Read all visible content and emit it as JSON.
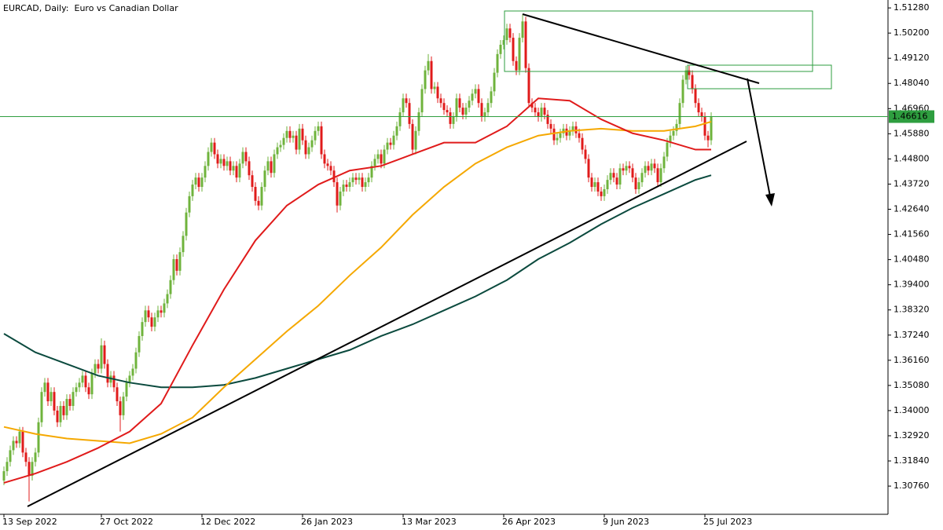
{
  "chart_data": {
    "type": "candlestick",
    "title": "EURCAD, Daily:  Euro vs Canadian Dollar",
    "last_price": {
      "value": 1.46616,
      "label": "1.46616"
    },
    "up_color": "#6fb33c",
    "down_color": "#e01b1b",
    "last_color": "#2e9e3f",
    "xlim": [
      -1.25,
      281.25
    ],
    "ylim": [
      1.2955,
      1.5162
    ],
    "xticks": [
      {
        "value": 0,
        "label": "13 Sep 2022"
      },
      {
        "value": 31,
        "label": "27 Oct 2022"
      },
      {
        "value": 63,
        "label": "12 Dec 2022"
      },
      {
        "value": 95,
        "label": "26 Jan 2023"
      },
      {
        "value": 127,
        "label": "13 Mar 2023"
      },
      {
        "value": 159,
        "label": "26 Apr 2023"
      },
      {
        "value": 191,
        "label": "9 Jun 2023"
      },
      {
        "value": 223,
        "label": "25 Jul 2023"
      }
    ],
    "yticks": [
      {
        "value": 1.5128,
        "label": "1.51280"
      },
      {
        "value": 1.502,
        "label": "1.50200"
      },
      {
        "value": 1.4912,
        "label": "1.49120"
      },
      {
        "value": 1.4804,
        "label": "1.48040"
      },
      {
        "value": 1.4696,
        "label": "1.46960"
      },
      {
        "value": 1.4588,
        "label": "1.45880"
      },
      {
        "value": 1.448,
        "label": "1.44800"
      },
      {
        "value": 1.4372,
        "label": "1.43720"
      },
      {
        "value": 1.4264,
        "label": "1.42640"
      },
      {
        "value": 1.4156,
        "label": "1.41560"
      },
      {
        "value": 1.4048,
        "label": "1.40480"
      },
      {
        "value": 1.394,
        "label": "1.39400"
      },
      {
        "value": 1.3832,
        "label": "1.38320"
      },
      {
        "value": 1.3724,
        "label": "1.37240"
      },
      {
        "value": 1.3616,
        "label": "1.36160"
      },
      {
        "value": 1.3508,
        "label": "1.35080"
      },
      {
        "value": 1.34,
        "label": "1.34000"
      },
      {
        "value": 1.3292,
        "label": "1.32920"
      },
      {
        "value": 1.3184,
        "label": "1.31840"
      },
      {
        "value": 1.3076,
        "label": "1.30760"
      }
    ],
    "open": [
      1.31,
      1.314,
      1.318,
      1.323,
      1.327,
      1.326,
      1.331,
      1.322,
      1.318,
      1.312,
      1.318,
      1.322,
      1.335,
      1.348,
      1.352,
      1.344,
      1.348,
      1.34,
      1.335,
      1.342,
      1.338,
      1.345,
      1.342,
      1.348,
      1.35,
      1.352,
      1.355,
      1.35,
      1.347,
      1.356,
      1.36,
      1.358,
      1.368,
      1.36,
      1.352,
      1.355,
      1.35,
      1.344,
      1.338,
      1.346,
      1.352,
      1.355,
      1.358,
      1.365,
      1.372,
      1.378,
      1.383,
      1.38,
      1.376,
      1.38,
      1.383,
      1.382,
      1.386,
      1.39,
      1.396,
      1.405,
      1.4,
      1.408,
      1.415,
      1.425,
      1.432,
      1.437,
      1.44,
      1.436,
      1.44,
      1.445,
      1.451,
      1.455,
      1.45,
      1.446,
      1.448,
      1.445,
      1.447,
      1.443,
      1.445,
      1.44,
      1.446,
      1.451,
      1.447,
      1.441,
      1.436,
      1.43,
      1.428,
      1.436,
      1.443,
      1.447,
      1.442,
      1.45,
      1.453,
      1.454,
      1.457,
      1.46,
      1.457,
      1.458,
      1.452,
      1.461,
      1.456,
      1.45,
      1.453,
      1.456,
      1.46,
      1.462,
      1.45,
      1.446,
      1.445,
      1.443,
      1.438,
      1.428,
      1.434,
      1.437,
      1.436,
      1.438,
      1.44,
      1.439,
      1.44,
      1.436,
      1.438,
      1.44,
      1.445,
      1.448,
      1.45,
      1.446,
      1.452,
      1.455,
      1.454,
      1.458,
      1.462,
      1.468,
      1.474,
      1.472,
      1.463,
      1.452,
      1.46,
      1.468,
      1.478,
      1.486,
      1.49,
      1.478,
      1.479,
      1.474,
      1.472,
      1.469,
      1.468,
      1.463,
      1.466,
      1.474,
      1.47,
      1.467,
      1.47,
      1.473,
      1.476,
      1.478,
      1.472,
      1.466,
      1.468,
      1.472,
      1.477,
      1.485,
      1.493,
      1.497,
      1.499,
      1.504,
      1.5,
      1.49,
      1.486,
      1.5,
      1.507,
      1.487,
      1.472,
      1.47,
      1.468,
      1.466,
      1.47,
      1.467,
      1.463,
      1.461,
      1.456,
      1.457,
      1.459,
      1.461,
      1.458,
      1.46,
      1.462,
      1.459,
      1.457,
      1.452,
      1.448,
      1.44,
      1.436,
      1.438,
      1.434,
      1.432,
      1.435,
      1.439,
      1.442,
      1.44,
      1.437,
      1.444,
      1.443,
      1.445,
      1.444,
      1.44,
      1.435,
      1.438,
      1.442,
      1.445,
      1.443,
      1.446,
      1.444,
      1.438,
      1.444,
      1.449,
      1.455,
      1.458,
      1.46,
      1.463,
      1.472,
      1.482,
      1.486,
      1.484,
      1.478,
      1.472,
      1.468,
      1.466,
      1.458,
      1.456
    ],
    "high": [
      1.316,
      1.32,
      1.325,
      1.329,
      1.329,
      1.333,
      1.333,
      1.324,
      1.32,
      1.32,
      1.324,
      1.337,
      1.35,
      1.354,
      1.354,
      1.35,
      1.35,
      1.342,
      1.344,
      1.344,
      1.347,
      1.347,
      1.35,
      1.352,
      1.354,
      1.357,
      1.357,
      1.352,
      1.358,
      1.362,
      1.362,
      1.371,
      1.37,
      1.362,
      1.357,
      1.357,
      1.352,
      1.346,
      1.348,
      1.354,
      1.357,
      1.36,
      1.367,
      1.374,
      1.38,
      1.385,
      1.385,
      1.382,
      1.382,
      1.385,
      1.385,
      1.388,
      1.392,
      1.398,
      1.407,
      1.407,
      1.41,
      1.417,
      1.427,
      1.434,
      1.439,
      1.442,
      1.442,
      1.442,
      1.447,
      1.453,
      1.457,
      1.457,
      1.452,
      1.45,
      1.45,
      1.449,
      1.449,
      1.447,
      1.447,
      1.448,
      1.453,
      1.453,
      1.449,
      1.443,
      1.438,
      1.432,
      1.438,
      1.445,
      1.449,
      1.449,
      1.452,
      1.455,
      1.456,
      1.459,
      1.462,
      1.462,
      1.46,
      1.46,
      1.463,
      1.463,
      1.458,
      1.455,
      1.458,
      1.462,
      1.464,
      1.464,
      1.452,
      1.448,
      1.447,
      1.445,
      1.44,
      1.436,
      1.439,
      1.439,
      1.44,
      1.442,
      1.442,
      1.442,
      1.442,
      1.44,
      1.442,
      1.447,
      1.45,
      1.452,
      1.452,
      1.454,
      1.457,
      1.457,
      1.46,
      1.464,
      1.47,
      1.476,
      1.476,
      1.474,
      1.465,
      1.462,
      1.47,
      1.48,
      1.488,
      1.493,
      1.492,
      1.481,
      1.481,
      1.476,
      1.474,
      1.471,
      1.47,
      1.468,
      1.476,
      1.476,
      1.472,
      1.472,
      1.475,
      1.478,
      1.48,
      1.48,
      1.474,
      1.47,
      1.474,
      1.479,
      1.487,
      1.495,
      1.499,
      1.501,
      1.506,
      1.506,
      1.502,
      1.492,
      1.502,
      1.51,
      1.509,
      1.489,
      1.474,
      1.472,
      1.47,
      1.472,
      1.472,
      1.469,
      1.465,
      1.463,
      1.459,
      1.461,
      1.463,
      1.463,
      1.462,
      1.464,
      1.464,
      1.461,
      1.459,
      1.454,
      1.45,
      1.442,
      1.44,
      1.44,
      1.436,
      1.437,
      1.441,
      1.444,
      1.444,
      1.442,
      1.446,
      1.446,
      1.447,
      1.447,
      1.446,
      1.442,
      1.44,
      1.444,
      1.447,
      1.447,
      1.448,
      1.448,
      1.446,
      1.446,
      1.451,
      1.457,
      1.46,
      1.462,
      1.465,
      1.474,
      1.484,
      1.488,
      1.488,
      1.486,
      1.48,
      1.474,
      1.47,
      1.468,
      1.46,
      1.468
    ],
    "low": [
      1.308,
      1.312,
      1.316,
      1.321,
      1.324,
      1.324,
      1.32,
      1.316,
      1.301,
      1.31,
      1.316,
      1.32,
      1.333,
      1.346,
      1.342,
      1.342,
      1.338,
      1.333,
      1.333,
      1.336,
      1.336,
      1.34,
      1.34,
      1.346,
      1.348,
      1.35,
      1.348,
      1.345,
      1.345,
      1.354,
      1.356,
      1.356,
      1.358,
      1.35,
      1.35,
      1.348,
      1.342,
      1.331,
      1.336,
      1.344,
      1.35,
      1.353,
      1.356,
      1.363,
      1.37,
      1.376,
      1.378,
      1.374,
      1.374,
      1.378,
      1.38,
      1.38,
      1.384,
      1.388,
      1.394,
      1.398,
      1.398,
      1.406,
      1.413,
      1.423,
      1.43,
      1.435,
      1.434,
      1.434,
      1.438,
      1.443,
      1.449,
      1.448,
      1.444,
      1.444,
      1.443,
      1.443,
      1.441,
      1.441,
      1.438,
      1.438,
      1.444,
      1.445,
      1.439,
      1.434,
      1.428,
      1.426,
      1.426,
      1.434,
      1.441,
      1.44,
      1.44,
      1.448,
      1.451,
      1.452,
      1.455,
      1.455,
      1.455,
      1.45,
      1.45,
      1.454,
      1.448,
      1.448,
      1.451,
      1.454,
      1.458,
      1.448,
      1.444,
      1.443,
      1.441,
      1.436,
      1.425,
      1.426,
      1.432,
      1.434,
      1.434,
      1.436,
      1.437,
      1.437,
      1.434,
      1.434,
      1.436,
      1.438,
      1.443,
      1.446,
      1.444,
      1.444,
      1.45,
      1.452,
      1.452,
      1.456,
      1.46,
      1.466,
      1.47,
      1.461,
      1.45,
      1.45,
      1.458,
      1.466,
      1.476,
      1.484,
      1.476,
      1.476,
      1.472,
      1.47,
      1.467,
      1.466,
      1.461,
      1.461,
      1.464,
      1.468,
      1.465,
      1.465,
      1.468,
      1.471,
      1.474,
      1.47,
      1.464,
      1.464,
      1.466,
      1.47,
      1.475,
      1.483,
      1.491,
      1.495,
      1.497,
      1.498,
      1.488,
      1.484,
      1.484,
      1.498,
      1.485,
      1.47,
      1.468,
      1.466,
      1.464,
      1.464,
      1.465,
      1.461,
      1.459,
      1.454,
      1.454,
      1.455,
      1.457,
      1.456,
      1.456,
      1.458,
      1.457,
      1.455,
      1.45,
      1.446,
      1.438,
      1.434,
      1.434,
      1.432,
      1.43,
      1.43,
      1.433,
      1.437,
      1.438,
      1.435,
      1.435,
      1.441,
      1.441,
      1.442,
      1.438,
      1.433,
      1.433,
      1.436,
      1.44,
      1.441,
      1.441,
      1.442,
      1.436,
      1.436,
      1.442,
      1.447,
      1.453,
      1.456,
      1.458,
      1.461,
      1.47,
      1.48,
      1.482,
      1.476,
      1.47,
      1.466,
      1.464,
      1.456,
      1.453,
      1.454
    ],
    "close": [
      1.314,
      1.318,
      1.323,
      1.327,
      1.326,
      1.331,
      1.322,
      1.318,
      1.312,
      1.318,
      1.322,
      1.335,
      1.348,
      1.352,
      1.344,
      1.348,
      1.34,
      1.335,
      1.342,
      1.338,
      1.345,
      1.342,
      1.348,
      1.35,
      1.352,
      1.355,
      1.35,
      1.347,
      1.356,
      1.36,
      1.358,
      1.368,
      1.36,
      1.352,
      1.355,
      1.35,
      1.344,
      1.338,
      1.346,
      1.352,
      1.355,
      1.358,
      1.365,
      1.372,
      1.378,
      1.383,
      1.38,
      1.376,
      1.38,
      1.383,
      1.382,
      1.386,
      1.39,
      1.396,
      1.405,
      1.4,
      1.408,
      1.415,
      1.425,
      1.432,
      1.437,
      1.44,
      1.436,
      1.44,
      1.445,
      1.451,
      1.455,
      1.45,
      1.446,
      1.448,
      1.445,
      1.447,
      1.443,
      1.445,
      1.44,
      1.446,
      1.451,
      1.447,
      1.441,
      1.436,
      1.43,
      1.428,
      1.436,
      1.443,
      1.447,
      1.442,
      1.45,
      1.453,
      1.454,
      1.457,
      1.46,
      1.457,
      1.458,
      1.452,
      1.461,
      1.456,
      1.45,
      1.453,
      1.456,
      1.46,
      1.462,
      1.45,
      1.446,
      1.445,
      1.443,
      1.438,
      1.428,
      1.434,
      1.437,
      1.436,
      1.438,
      1.44,
      1.439,
      1.44,
      1.436,
      1.438,
      1.44,
      1.445,
      1.448,
      1.45,
      1.446,
      1.452,
      1.455,
      1.454,
      1.458,
      1.462,
      1.468,
      1.474,
      1.472,
      1.463,
      1.452,
      1.46,
      1.468,
      1.478,
      1.486,
      1.49,
      1.478,
      1.479,
      1.474,
      1.472,
      1.469,
      1.468,
      1.463,
      1.466,
      1.474,
      1.47,
      1.467,
      1.47,
      1.473,
      1.476,
      1.478,
      1.472,
      1.466,
      1.468,
      1.472,
      1.477,
      1.485,
      1.493,
      1.497,
      1.499,
      1.504,
      1.5,
      1.49,
      1.486,
      1.5,
      1.507,
      1.487,
      1.472,
      1.47,
      1.468,
      1.466,
      1.47,
      1.467,
      1.463,
      1.461,
      1.456,
      1.457,
      1.459,
      1.461,
      1.458,
      1.46,
      1.462,
      1.459,
      1.457,
      1.452,
      1.448,
      1.44,
      1.436,
      1.438,
      1.434,
      1.432,
      1.435,
      1.439,
      1.442,
      1.44,
      1.437,
      1.444,
      1.443,
      1.445,
      1.444,
      1.44,
      1.435,
      1.438,
      1.442,
      1.445,
      1.443,
      1.446,
      1.444,
      1.438,
      1.444,
      1.449,
      1.455,
      1.458,
      1.46,
      1.463,
      1.472,
      1.482,
      1.486,
      1.484,
      1.478,
      1.472,
      1.468,
      1.466,
      1.458,
      1.456,
      1.466
    ],
    "ma_x": [
      0,
      10,
      20,
      30,
      40,
      50,
      60,
      70,
      80,
      90,
      100,
      110,
      120,
      130,
      140,
      150,
      160,
      170,
      180,
      190,
      200,
      210,
      220,
      225
    ],
    "series": [
      {
        "color": "#0b4a3e",
        "values": [
          1.373,
          1.365,
          1.36,
          1.355,
          1.352,
          1.35,
          1.35,
          1.351,
          1.354,
          1.358,
          1.362,
          1.366,
          1.372,
          1.377,
          1.383,
          1.389,
          1.396,
          1.405,
          1.412,
          1.42,
          1.427,
          1.433,
          1.439,
          1.441
        ]
      },
      {
        "color": "#f5a800",
        "values": [
          1.333,
          1.33,
          1.328,
          1.327,
          1.326,
          1.33,
          1.337,
          1.35,
          1.362,
          1.374,
          1.385,
          1.398,
          1.41,
          1.424,
          1.436,
          1.446,
          1.453,
          1.458,
          1.46,
          1.461,
          1.46,
          1.46,
          1.462,
          1.464
        ]
      },
      {
        "color": "#e01b1b",
        "values": [
          1.309,
          1.313,
          1.318,
          1.324,
          1.331,
          1.343,
          1.368,
          1.392,
          1.413,
          1.428,
          1.437,
          1.443,
          1.445,
          1.45,
          1.455,
          1.455,
          1.462,
          1.474,
          1.473,
          1.465,
          1.459,
          1.456,
          1.452,
          1.452
        ]
      }
    ]
  }
}
